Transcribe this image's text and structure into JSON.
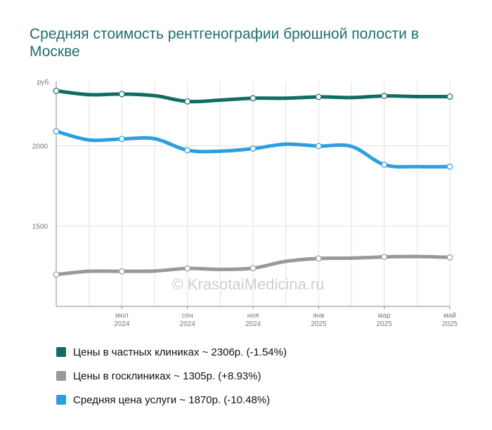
{
  "title": "Средняя стоимость рентгенографии брюшной полости в Москве",
  "watermark": "© KrasotaiMedicina.ru",
  "chart_data": {
    "type": "line",
    "ylabel": "руб.",
    "ylim": [
      1000,
      2400
    ],
    "yticks": [
      1500,
      2000
    ],
    "grid": true,
    "x": [
      "2024-05",
      "2024-06",
      "2024-07",
      "2024-08",
      "2024-09",
      "2024-10",
      "2024-11",
      "2024-12",
      "2025-01",
      "2025-02",
      "2025-03",
      "2025-04",
      "2025-05"
    ],
    "x_tick_labels": [
      {
        "month": "июл",
        "year": "2024"
      },
      {
        "month": "сен",
        "year": "2024"
      },
      {
        "month": "ноя",
        "year": "2024"
      },
      {
        "month": "янв",
        "year": "2025"
      },
      {
        "month": "мар",
        "year": "2025"
      },
      {
        "month": "май",
        "year": "2025"
      }
    ],
    "series": [
      {
        "name": "Цены в частных клиниках",
        "legend": "Цены в частных клиниках ~ 2306р. (-1.54%)",
        "color": "#116d62",
        "values": [
          2342,
          2318,
          2322,
          2312,
          2276,
          2284,
          2296,
          2296,
          2304,
          2300,
          2310,
          2306,
          2306
        ]
      },
      {
        "name": "Цены в госклиниках",
        "legend": "Цены в госклиниках ~ 1305р. (+8.93%)",
        "color": "#999999",
        "values": [
          1198,
          1218,
          1218,
          1220,
          1236,
          1230,
          1238,
          1280,
          1298,
          1300,
          1308,
          1310,
          1305
        ]
      },
      {
        "name": "Средняя цена услуги",
        "legend": "Средняя цена услуги ~ 1870р. (-10.48%)",
        "color": "#2b9fe0",
        "values": [
          2090,
          2036,
          2042,
          2044,
          1972,
          1966,
          1982,
          2010,
          1998,
          1996,
          1882,
          1870,
          1870
        ]
      }
    ]
  }
}
